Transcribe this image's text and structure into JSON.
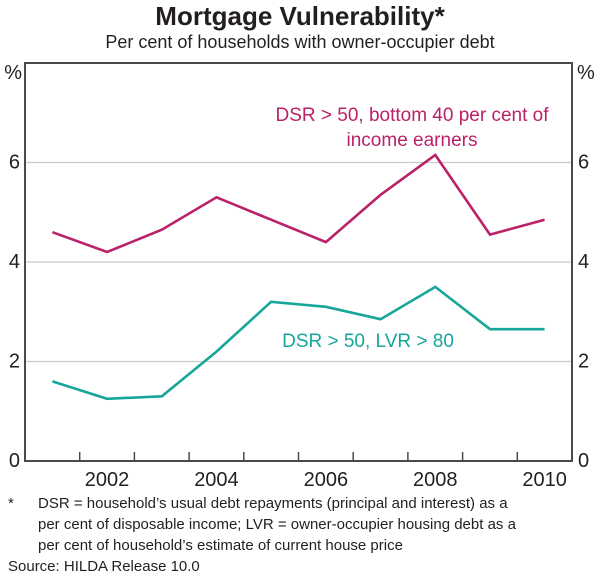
{
  "title": "Mortgage Vulnerability*",
  "subtitle": "Per cent of households with owner-occupier debt",
  "chart_data": {
    "type": "line",
    "x": [
      2001,
      2002,
      2003,
      2004,
      2005,
      2006,
      2007,
      2008,
      2009,
      2010
    ],
    "series": [
      {
        "name": "DSR > 50, bottom 40 per cent of income earners",
        "label_lines": [
          "DSR > 50, bottom 40 per cent of",
          "income earners"
        ],
        "color": "#ba2168",
        "values": [
          4.6,
          4.2,
          4.65,
          5.3,
          4.85,
          4.4,
          5.35,
          6.15,
          4.55,
          4.85
        ]
      },
      {
        "name": "DSR > 50, LVR > 80",
        "label_lines": [
          "DSR > 50, LVR > 80"
        ],
        "color": "#17a69a",
        "values": [
          1.6,
          1.25,
          1.3,
          2.2,
          3.2,
          3.1,
          2.85,
          3.5,
          2.65,
          2.65
        ]
      }
    ],
    "ylim": [
      0,
      8
    ],
    "yticks": [
      0,
      2,
      4,
      6
    ],
    "y_unit": "%",
    "xtick_labels": [
      "2002",
      "2004",
      "2006",
      "2008",
      "2010"
    ],
    "grid": true,
    "legend_position": "in-chart annotations"
  },
  "footnote": {
    "marker": "*",
    "lines": [
      "DSR = household’s usual debt repayments (principal and interest) as a",
      "per cent of disposable income; LVR = owner-occupier housing debt as a",
      "per cent of household’s estimate of current house price"
    ],
    "source": "Source: HILDA Release 10.0"
  },
  "colors": {
    "text": "#231f20",
    "axis": "#4a4a4c",
    "grid": "#cbcbcb"
  }
}
